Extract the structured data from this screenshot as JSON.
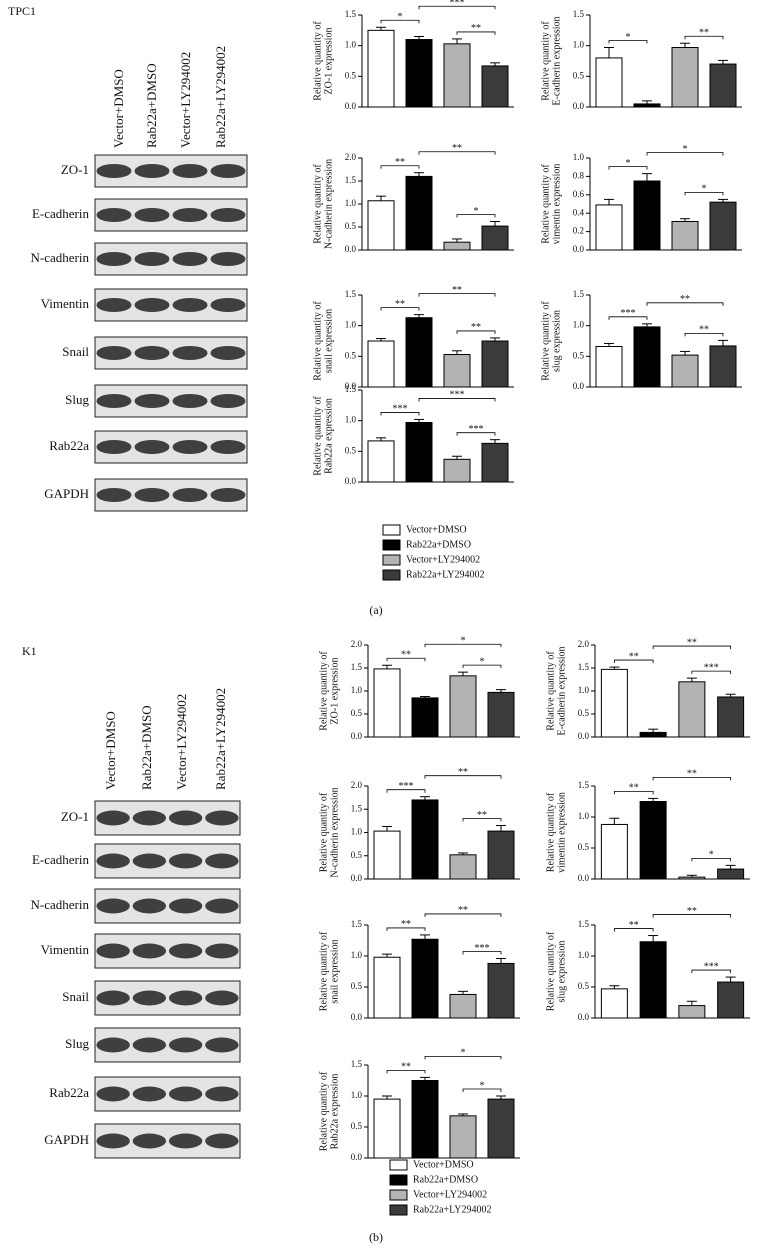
{
  "chart_data": [
    {
      "type": "bar",
      "ylabel": [
        "Relative quantity of",
        "ZO-1 expression"
      ],
      "values": [
        1.25,
        1.1,
        1.03,
        0.67
      ],
      "errors": [
        0.05,
        0.05,
        0.08,
        0.05
      ],
      "colors": [
        "#ffffff",
        "#000000",
        "#b3b3b3",
        "#3b3b3b"
      ],
      "ylim": [
        0,
        1.5
      ],
      "yticks": [
        {
          "value": 0,
          "label": "0.0"
        },
        0.5,
        {
          "value": 1,
          "label": "1.0"
        },
        1.5
      ],
      "annotations": [
        {
          "label": "*",
          "bars": [
            0,
            1
          ]
        },
        {
          "label": "**",
          "bars": [
            2,
            3
          ]
        },
        {
          "label": "***",
          "bars": [
            1,
            3
          ]
        }
      ]
    },
    {
      "type": "bar",
      "ylabel": [
        "Relative quantity of",
        "E-cadherin expression"
      ],
      "values": [
        0.8,
        0.05,
        0.97,
        0.7
      ],
      "errors": [
        0.17,
        0.05,
        0.07,
        0.06
      ],
      "colors": [
        "#ffffff",
        "#000000",
        "#b3b3b3",
        "#3b3b3b"
      ],
      "ylim": [
        0,
        1.5
      ],
      "yticks": [
        {
          "value": 0,
          "label": "0.0"
        },
        0.5,
        {
          "value": 1,
          "label": "1.0"
        },
        1.5
      ],
      "annotations": [
        {
          "label": "*",
          "bars": [
            0,
            1
          ]
        },
        {
          "label": "**",
          "bars": [
            2,
            3
          ]
        }
      ]
    },
    {
      "type": "bar",
      "ylabel": [
        "Relative quantity of",
        "N-cadherin expression"
      ],
      "values": [
        1.07,
        1.6,
        0.17,
        0.52
      ],
      "errors": [
        0.1,
        0.08,
        0.07,
        0.1
      ],
      "colors": [
        "#ffffff",
        "#000000",
        "#b3b3b3",
        "#3b3b3b"
      ],
      "ylim": [
        0,
        2
      ],
      "yticks": [
        {
          "value": 0,
          "label": "0.0"
        },
        0.5,
        {
          "value": 1,
          "label": "1.0"
        },
        1.5,
        {
          "value": 2,
          "label": "2.0"
        }
      ],
      "annotations": [
        {
          "label": "**",
          "bars": [
            0,
            1
          ]
        },
        {
          "label": "*",
          "bars": [
            2,
            3
          ]
        },
        {
          "label": "**",
          "bars": [
            1,
            3
          ]
        }
      ]
    },
    {
      "type": "bar",
      "ylabel": [
        "Relative quantity of",
        "vimentin expression"
      ],
      "values": [
        0.49,
        0.75,
        0.31,
        0.52
      ],
      "errors": [
        0.06,
        0.08,
        0.03,
        0.03
      ],
      "colors": [
        "#ffffff",
        "#000000",
        "#b3b3b3",
        "#3b3b3b"
      ],
      "ylim": [
        0,
        1
      ],
      "yticks": [
        {
          "value": 0,
          "label": "0.0"
        },
        0.2,
        0.4,
        0.6,
        0.8,
        {
          "value": 1,
          "label": "1.0"
        }
      ],
      "annotations": [
        {
          "label": "*",
          "bars": [
            0,
            1
          ]
        },
        {
          "label": "*",
          "bars": [
            2,
            3
          ]
        },
        {
          "label": "*",
          "bars": [
            1,
            3
          ]
        }
      ]
    },
    {
      "type": "bar",
      "ylabel": [
        "Relative quantity of",
        "snail expression"
      ],
      "values": [
        0.75,
        1.13,
        0.53,
        0.75
      ],
      "errors": [
        0.04,
        0.05,
        0.06,
        0.05
      ],
      "colors": [
        "#ffffff",
        "#000000",
        "#b3b3b3",
        "#3b3b3b"
      ],
      "ylim": [
        0,
        1.5
      ],
      "yticks": [
        {
          "value": 0,
          "label": "0.0"
        },
        0.5,
        {
          "value": 1,
          "label": "1.0"
        },
        1.5
      ],
      "annotations": [
        {
          "label": "**",
          "bars": [
            0,
            1
          ]
        },
        {
          "label": "**",
          "bars": [
            2,
            3
          ]
        },
        {
          "label": "**",
          "bars": [
            1,
            3
          ]
        }
      ]
    },
    {
      "type": "bar",
      "ylabel": [
        "Relative quantity of",
        "slug expression"
      ],
      "values": [
        0.66,
        0.98,
        0.52,
        0.67
      ],
      "errors": [
        0.05,
        0.05,
        0.06,
        0.09
      ],
      "colors": [
        "#ffffff",
        "#000000",
        "#b3b3b3",
        "#3b3b3b"
      ],
      "ylim": [
        0,
        1.5
      ],
      "yticks": [
        {
          "value": 0,
          "label": "0.0"
        },
        0.5,
        {
          "value": 1,
          "label": "1.0"
        },
        1.5
      ],
      "annotations": [
        {
          "label": "***",
          "bars": [
            0,
            1
          ]
        },
        {
          "label": "**",
          "bars": [
            2,
            3
          ]
        },
        {
          "label": "**",
          "bars": [
            1,
            3
          ]
        }
      ]
    },
    {
      "type": "bar",
      "ylabel": [
        "Relative quantity of",
        "Rab22a expression"
      ],
      "values": [
        0.67,
        0.97,
        0.37,
        0.63
      ],
      "errors": [
        0.05,
        0.05,
        0.05,
        0.06
      ],
      "colors": [
        "#ffffff",
        "#000000",
        "#b3b3b3",
        "#3b3b3b"
      ],
      "ylim": [
        0,
        1.5
      ],
      "yticks": [
        {
          "value": 0,
          "label": "0.0"
        },
        0.5,
        {
          "value": 1,
          "label": "1.0"
        },
        1.5
      ],
      "annotations": [
        {
          "label": "***",
          "bars": [
            0,
            1
          ]
        },
        {
          "label": "***",
          "bars": [
            2,
            3
          ]
        },
        {
          "label": "***",
          "bars": [
            1,
            3
          ]
        }
      ]
    },
    {
      "type": "bar",
      "ylabel": [
        "Relative quantity of",
        "ZO-1 expression"
      ],
      "values": [
        1.48,
        0.85,
        1.33,
        0.97
      ],
      "errors": [
        0.08,
        0.03,
        0.08,
        0.06
      ],
      "colors": [
        "#ffffff",
        "#000000",
        "#b3b3b3",
        "#3b3b3b"
      ],
      "ylim": [
        0,
        2
      ],
      "yticks": [
        {
          "value": 0,
          "label": "0.0"
        },
        0.5,
        {
          "value": 1,
          "label": "1.0"
        },
        1.5,
        {
          "value": 2,
          "label": "2.0"
        }
      ],
      "annotations": [
        {
          "label": "**",
          "bars": [
            0,
            1
          ]
        },
        {
          "label": "*",
          "bars": [
            2,
            3
          ]
        },
        {
          "label": "*",
          "bars": [
            1,
            3
          ]
        }
      ]
    },
    {
      "type": "bar",
      "ylabel": [
        "Relative quantity of",
        "E-cadherin expression"
      ],
      "values": [
        1.47,
        0.1,
        1.2,
        0.87
      ],
      "errors": [
        0.05,
        0.07,
        0.08,
        0.06
      ],
      "colors": [
        "#ffffff",
        "#000000",
        "#b3b3b3",
        "#3b3b3b"
      ],
      "ylim": [
        0,
        2
      ],
      "yticks": [
        {
          "value": 0,
          "label": "0.0"
        },
        0.5,
        {
          "value": 1,
          "label": "1.0"
        },
        1.5,
        {
          "value": 2,
          "label": "2.0"
        }
      ],
      "annotations": [
        {
          "label": "**",
          "bars": [
            0,
            1
          ]
        },
        {
          "label": "***",
          "bars": [
            2,
            3
          ]
        },
        {
          "label": "**",
          "bars": [
            1,
            3
          ]
        }
      ]
    },
    {
      "type": "bar",
      "ylabel": [
        "Relative quantity of",
        "N-cadherin expression"
      ],
      "values": [
        1.03,
        1.7,
        0.52,
        1.03
      ],
      "errors": [
        0.1,
        0.07,
        0.04,
        0.12
      ],
      "colors": [
        "#ffffff",
        "#000000",
        "#b3b3b3",
        "#3b3b3b"
      ],
      "ylim": [
        0,
        2
      ],
      "yticks": [
        {
          "value": 0,
          "label": "0.0"
        },
        0.5,
        {
          "value": 1,
          "label": "1.0"
        },
        1.5,
        {
          "value": 2,
          "label": "2.0"
        }
      ],
      "annotations": [
        {
          "label": "***",
          "bars": [
            0,
            1
          ]
        },
        {
          "label": "**",
          "bars": [
            2,
            3
          ]
        },
        {
          "label": "**",
          "bars": [
            1,
            3
          ]
        }
      ]
    },
    {
      "type": "bar",
      "ylabel": [
        "Relative quantity of",
        "vimentin expression"
      ],
      "values": [
        0.88,
        1.25,
        0.03,
        0.16
      ],
      "errors": [
        0.1,
        0.05,
        0.03,
        0.06
      ],
      "colors": [
        "#ffffff",
        "#000000",
        "#b3b3b3",
        "#3b3b3b"
      ],
      "ylim": [
        0,
        1.5
      ],
      "yticks": [
        {
          "value": 0,
          "label": "0.0"
        },
        0.5,
        {
          "value": 1,
          "label": "1.0"
        },
        1.5
      ],
      "annotations": [
        {
          "label": "**",
          "bars": [
            0,
            1
          ]
        },
        {
          "label": "*",
          "bars": [
            2,
            3
          ]
        },
        {
          "label": "**",
          "bars": [
            1,
            3
          ]
        }
      ]
    },
    {
      "type": "bar",
      "ylabel": [
        "Relative quantity of",
        "snail expression"
      ],
      "values": [
        0.98,
        1.27,
        0.38,
        0.88
      ],
      "errors": [
        0.05,
        0.07,
        0.05,
        0.08
      ],
      "colors": [
        "#ffffff",
        "#000000",
        "#b3b3b3",
        "#3b3b3b"
      ],
      "ylim": [
        0,
        1.5
      ],
      "yticks": [
        {
          "value": 0,
          "label": "0.0"
        },
        0.5,
        {
          "value": 1,
          "label": "1.0"
        },
        1.5
      ],
      "annotations": [
        {
          "label": "**",
          "bars": [
            0,
            1
          ]
        },
        {
          "label": "***",
          "bars": [
            2,
            3
          ]
        },
        {
          "label": "**",
          "bars": [
            1,
            3
          ]
        }
      ]
    },
    {
      "type": "bar",
      "ylabel": [
        "Relative quantity of",
        "slug expression"
      ],
      "values": [
        0.47,
        1.23,
        0.2,
        0.58
      ],
      "errors": [
        0.05,
        0.1,
        0.07,
        0.08
      ],
      "colors": [
        "#ffffff",
        "#000000",
        "#b3b3b3",
        "#3b3b3b"
      ],
      "ylim": [
        0,
        1.5
      ],
      "yticks": [
        {
          "value": 0,
          "label": "0.0"
        },
        0.5,
        {
          "value": 1,
          "label": "1.0"
        },
        1.5
      ],
      "annotations": [
        {
          "label": "**",
          "bars": [
            0,
            1
          ]
        },
        {
          "label": "***",
          "bars": [
            2,
            3
          ]
        },
        {
          "label": "**",
          "bars": [
            1,
            3
          ]
        }
      ]
    },
    {
      "type": "bar",
      "ylabel": [
        "Relative quantity of",
        "Rab22a expression"
      ],
      "values": [
        0.95,
        1.25,
        0.68,
        0.95
      ],
      "errors": [
        0.05,
        0.05,
        0.03,
        0.05
      ],
      "colors": [
        "#ffffff",
        "#000000",
        "#b3b3b3",
        "#3b3b3b"
      ],
      "ylim": [
        0,
        1.5
      ],
      "yticks": [
        {
          "value": 0,
          "label": "0.0"
        },
        0.5,
        {
          "value": 1,
          "label": "1.0"
        },
        1.5
      ],
      "annotations": [
        {
          "label": "**",
          "bars": [
            0,
            1
          ]
        },
        {
          "label": "*",
          "bars": [
            2,
            3
          ]
        },
        {
          "label": "*",
          "bars": [
            1,
            3
          ]
        }
      ]
    }
  ],
  "figure": {
    "panels": [
      {
        "cell_line": "TPC1",
        "label": "(a)",
        "blot": {
          "columns": [
            "Vector+DMSO",
            "Rab22a+DMSO",
            "Vector+LY294002",
            "Rab22a+LY294002"
          ],
          "rows": [
            "ZO-1",
            "E-cadherin",
            "N-cadherin",
            "Vimentin",
            "Snail",
            "Slug",
            "Rab22a",
            "GAPDH"
          ]
        },
        "legend": [
          {
            "name": "Vector+DMSO",
            "color": "#ffffff"
          },
          {
            "name": "Rab22a+DMSO",
            "color": "#000000"
          },
          {
            "name": "Vector+LY294002",
            "color": "#b3b3b3"
          },
          {
            "name": "Rab22a+LY294002",
            "color": "#3b3b3b"
          }
        ]
      },
      {
        "cell_line": "K1",
        "label": "(b)",
        "blot": {
          "columns": [
            "Vector+DMSO",
            "Rab22a+DMSO",
            "Vector+LY294002",
            "Rab22a+LY294002"
          ],
          "rows": [
            "ZO-1",
            "E-cadherin",
            "N-cadherin",
            "Vimentin",
            "Snail",
            "Slug",
            "Rab22a",
            "GAPDH"
          ]
        },
        "legend": [
          {
            "name": "Vector+DMSO",
            "color": "#ffffff"
          },
          {
            "name": "Rab22a+DMSO",
            "color": "#000000"
          },
          {
            "name": "Vector+LY294002",
            "color": "#b3b3b3"
          },
          {
            "name": "Rab22a+LY294002",
            "color": "#3b3b3b"
          }
        ]
      }
    ]
  }
}
